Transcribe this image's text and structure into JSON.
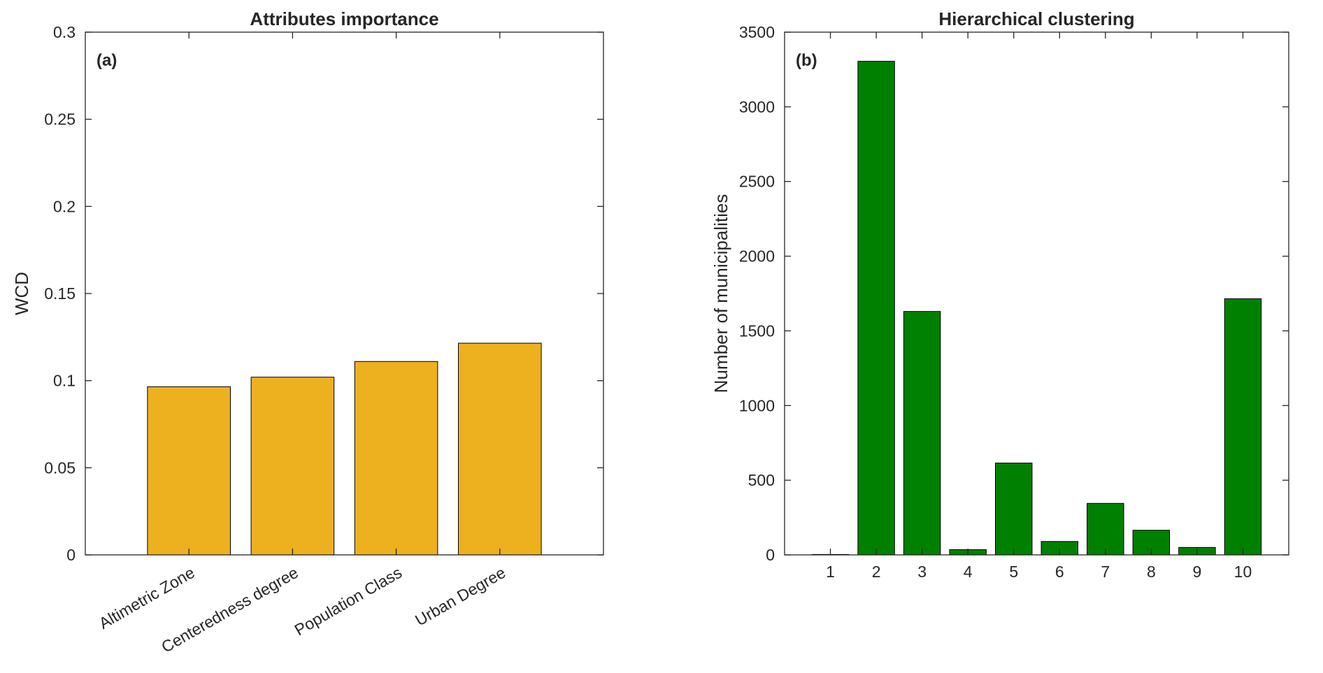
{
  "chart_data": [
    {
      "type": "bar",
      "title": "Attributes importance",
      "panel_label": "(a)",
      "xlabel": "",
      "ylabel": "WCD",
      "categories": [
        "Altimetric Zone",
        "Centeredness degree",
        "Population Class",
        "Urban Degree"
      ],
      "values": [
        0.0965,
        0.102,
        0.111,
        0.1215
      ],
      "ylim": [
        0,
        0.3
      ],
      "yticks": [
        0,
        0.05,
        0.1,
        0.15,
        0.2,
        0.25,
        0.3
      ],
      "ytick_labels": [
        "0",
        "0.05",
        "0.1",
        "0.15",
        "0.2",
        "0.25",
        "0.3"
      ],
      "bar_color": "#EDB120",
      "grid": false
    },
    {
      "type": "bar",
      "title": "Hierarchical clustering",
      "panel_label": "(b)",
      "xlabel": "",
      "ylabel": "Number of municipalities",
      "categories": [
        "1",
        "2",
        "3",
        "4",
        "5",
        "6",
        "7",
        "8",
        "9",
        "10"
      ],
      "values": [
        3,
        3305,
        1630,
        35,
        615,
        90,
        345,
        165,
        50,
        1715
      ],
      "ylim": [
        0,
        3500
      ],
      "yticks": [
        0,
        500,
        1000,
        1500,
        2000,
        2500,
        3000,
        3500
      ],
      "ytick_labels": [
        "0",
        "500",
        "1000",
        "1500",
        "2000",
        "2500",
        "3000",
        "3500"
      ],
      "bar_color": "#008000",
      "grid": false
    }
  ]
}
